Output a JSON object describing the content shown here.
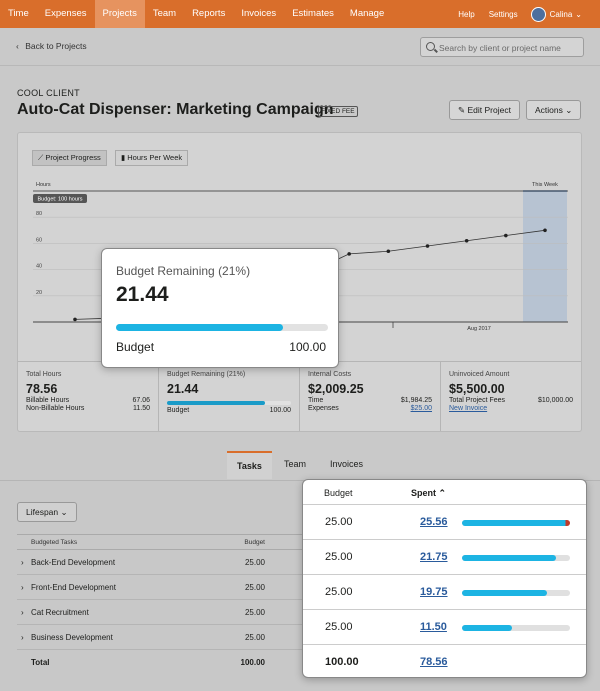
{
  "nav": {
    "items": [
      "Time",
      "Expenses",
      "Projects",
      "Team",
      "Reports",
      "Invoices",
      "Estimates",
      "Manage"
    ],
    "active": "Projects",
    "help": "Help",
    "settings": "Settings",
    "user": "Calina"
  },
  "subbar": {
    "back": "Back to Projects",
    "search_placeholder": "Search by client or project name"
  },
  "project": {
    "client": "COOL CLIENT",
    "title": "Auto-Cat Dispenser: Marketing Campaign",
    "badge": "FIXED FEE",
    "edit": "Edit Project",
    "actions": "Actions"
  },
  "chart_toggles": {
    "progress": "Project Progress",
    "per_week": "Hours Per Week"
  },
  "chart_data": {
    "type": "line",
    "ylabel": "Hours",
    "yticks": [
      20,
      40,
      60,
      80
    ],
    "ylim": [
      0,
      100
    ],
    "budget_label": "Budget: 100 hours",
    "budget": 100,
    "x_label": "Aug 2017",
    "this_week": "This Week",
    "values": [
      2,
      3,
      5,
      8,
      14,
      24,
      38,
      52,
      54,
      58,
      62,
      66,
      70
    ]
  },
  "stats": {
    "total_hours": {
      "label": "Total Hours",
      "value": "78.56",
      "billable_label": "Billable Hours",
      "billable": "67.06",
      "nonbillable_label": "Non-Billable Hours",
      "nonbillable": "11.50"
    },
    "budget_remaining": {
      "label": "Budget Remaining (21%)",
      "value": "21.44",
      "budget_label": "Budget",
      "budget": "100.00",
      "spent_fraction": 0.79
    },
    "internal_costs": {
      "label": "Internal Costs",
      "value": "$2,009.25",
      "time_label": "Time",
      "time": "$1,984.25",
      "expenses_label": "Expenses",
      "expenses": "$25.00"
    },
    "uninvoiced": {
      "label": "Uninvoiced Amount",
      "value": "$5,500.00",
      "fees_label": "Total Project Fees",
      "fees": "$10,000.00",
      "new_invoice": "New Invoice"
    }
  },
  "tabs": [
    "Tasks",
    "Team",
    "Invoices"
  ],
  "lifespan": "Lifespan",
  "table": {
    "headers": {
      "tasks": "Budgeted Tasks",
      "budget": "Budget"
    },
    "rows": [
      {
        "name": "Back-End Development",
        "budget": "25.00"
      },
      {
        "name": "Front-End Development",
        "budget": "25.00"
      },
      {
        "name": "Cat Recruitment",
        "budget": "25.00"
      },
      {
        "name": "Business Development",
        "budget": "25.00"
      }
    ],
    "total_label": "Total",
    "total_budget": "100.00"
  },
  "popup_budget": {
    "label": "Budget Remaining (21%)",
    "value": "21.44",
    "budget_label": "Budget",
    "budget": "100.00",
    "spent_fraction": 0.79
  },
  "popup_spent": {
    "budget_header": "Budget",
    "spent_header": "Spent",
    "rows": [
      {
        "budget": "25.00",
        "spent": "25.56",
        "fraction": 1.0
      },
      {
        "budget": "25.00",
        "spent": "21.75",
        "fraction": 0.87
      },
      {
        "budget": "25.00",
        "spent": "19.75",
        "fraction": 0.79
      },
      {
        "budget": "25.00",
        "spent": "11.50",
        "fraction": 0.46
      }
    ],
    "total_budget": "100.00",
    "total_spent": "78.56"
  }
}
